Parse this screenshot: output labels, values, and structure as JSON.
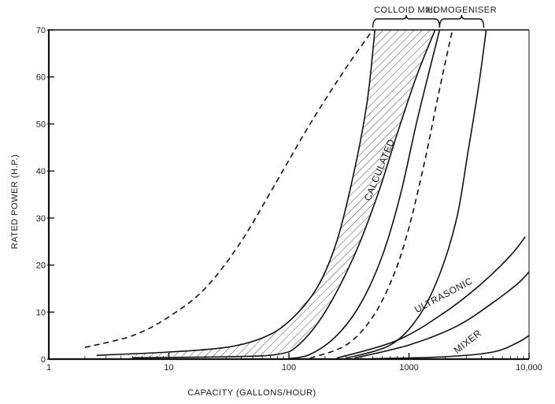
{
  "chart_data": {
    "type": "line",
    "xscale": "log",
    "xlim": [
      1,
      10000
    ],
    "ylim": [
      0,
      70
    ],
    "xlabel": "CAPACITY (GALLONS/HOUR)",
    "ylabel": "RATED POWER (H.P.)",
    "x_ticks": [
      {
        "value": 1,
        "label": "1"
      },
      {
        "value": 10,
        "label": "10"
      },
      {
        "value": 100,
        "label": "100"
      },
      {
        "value": 1000,
        "label": "1000"
      },
      {
        "value": 10000,
        "label": "10,000"
      }
    ],
    "y_ticks": [
      {
        "value": 0,
        "label": "0"
      },
      {
        "value": 10,
        "label": "10"
      },
      {
        "value": 20,
        "label": "20"
      },
      {
        "value": 30,
        "label": "30"
      },
      {
        "value": 40,
        "label": "40"
      },
      {
        "value": 50,
        "label": "50"
      },
      {
        "value": 60,
        "label": "60"
      },
      {
        "value": 70,
        "label": "70"
      }
    ],
    "grid": false,
    "brackets": [
      {
        "label": "COLLOID MILL",
        "x_range": [
          500,
          1800
        ]
      },
      {
        "label": "HOMOGENISER",
        "x_range": [
          1800,
          4200
        ]
      }
    ],
    "series": [
      {
        "name": "calculated-left-dashed",
        "style": "dashed",
        "points": [
          [
            2,
            2.5
          ],
          [
            5,
            5
          ],
          [
            10,
            9
          ],
          [
            20,
            15
          ],
          [
            40,
            25
          ],
          [
            80,
            38
          ],
          [
            150,
            50
          ],
          [
            300,
            62
          ],
          [
            500,
            70
          ]
        ]
      },
      {
        "name": "colloid-left-solid",
        "style": "solid",
        "points": [
          [
            2.5,
            0.8
          ],
          [
            10,
            1.5
          ],
          [
            30,
            2.5
          ],
          [
            60,
            4.5
          ],
          [
            100,
            8
          ],
          [
            170,
            15
          ],
          [
            250,
            25
          ],
          [
            350,
            40
          ],
          [
            450,
            55
          ],
          [
            520,
            70
          ]
        ]
      },
      {
        "name": "colloid-right-solid",
        "style": "solid",
        "points": [
          [
            5,
            0.3
          ],
          [
            30,
            0.5
          ],
          [
            80,
            1
          ],
          [
            120,
            3
          ],
          [
            200,
            10
          ],
          [
            350,
            22
          ],
          [
            550,
            35
          ],
          [
            800,
            48
          ],
          [
            1150,
            60
          ],
          [
            1650,
            70
          ]
        ]
      },
      {
        "name": "homogeniser-left-solid",
        "style": "solid",
        "points": [
          [
            100,
            0.1
          ],
          [
            150,
            1
          ],
          [
            250,
            5
          ],
          [
            400,
            12
          ],
          [
            600,
            22
          ],
          [
            850,
            35
          ],
          [
            1150,
            50
          ],
          [
            1500,
            62
          ],
          [
            1800,
            70
          ]
        ]
      },
      {
        "name": "homogeniser-left-dashed",
        "style": "dashed",
        "points": [
          [
            150,
            0.2
          ],
          [
            300,
            3
          ],
          [
            500,
            9
          ],
          [
            750,
            18
          ],
          [
            1000,
            28
          ],
          [
            1350,
            42
          ],
          [
            1750,
            56
          ],
          [
            2300,
            70
          ]
        ]
      },
      {
        "name": "homogeniser-right-solid",
        "style": "solid",
        "points": [
          [
            300,
            0.2
          ],
          [
            700,
            3
          ],
          [
            1200,
            9
          ],
          [
            1800,
            18
          ],
          [
            2500,
            30
          ],
          [
            3100,
            44
          ],
          [
            3800,
            58
          ],
          [
            4400,
            70
          ]
        ]
      },
      {
        "name": "ultrasonic-upper",
        "style": "solid",
        "points": [
          [
            250,
            0.2
          ],
          [
            800,
            4
          ],
          [
            2000,
            10
          ],
          [
            4000,
            16
          ],
          [
            7000,
            22
          ],
          [
            9300,
            26
          ]
        ]
      },
      {
        "name": "ultrasonic-lower",
        "style": "solid",
        "points": [
          [
            350,
            0.2
          ],
          [
            1000,
            3
          ],
          [
            2500,
            7
          ],
          [
            5000,
            12
          ],
          [
            8000,
            16
          ],
          [
            10000,
            18.5
          ]
        ]
      },
      {
        "name": "mixer",
        "style": "solid",
        "points": [
          [
            500,
            0.1
          ],
          [
            2000,
            0.5
          ],
          [
            5000,
            1.5
          ],
          [
            8000,
            3.5
          ],
          [
            10000,
            5
          ]
        ]
      }
    ],
    "shaded_band": {
      "between": [
        "colloid-left-solid",
        "colloid-right-solid"
      ],
      "pattern": "diagonal-hatch"
    },
    "curve_labels": [
      {
        "text": "CALCULATED",
        "x": 600,
        "y": 40,
        "angle": -68
      },
      {
        "text": "ULTRASONIC",
        "x": 2000,
        "y": 13,
        "angle": -28
      },
      {
        "text": "MIXER",
        "x": 3200,
        "y": 3.2,
        "angle": -38
      }
    ]
  }
}
